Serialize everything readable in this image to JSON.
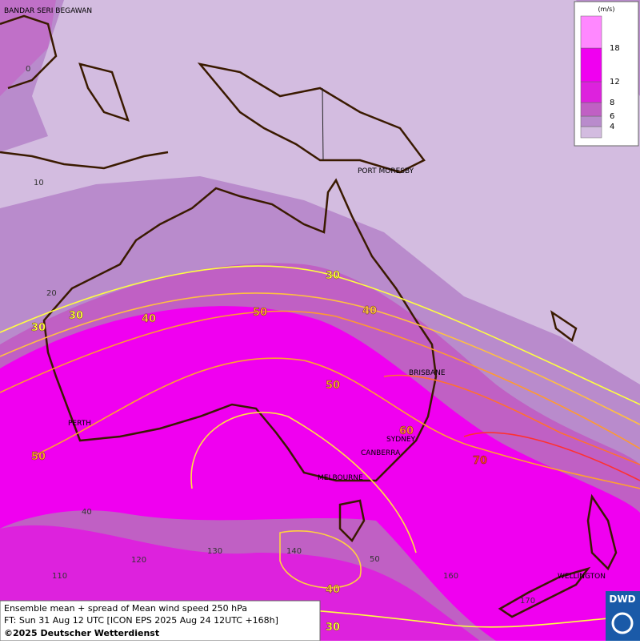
{
  "places": [
    "BANDAR SERI BEGAWAN",
    "PORT MORESBY",
    "BRISBANE",
    "PERTH",
    "SYDNEY",
    "CANBERRA",
    "MELBOURNE",
    "WELLINGTON"
  ],
  "grid_labels": [
    "0",
    "10",
    "20",
    "40",
    "110",
    "120",
    "130",
    "140",
    "50",
    "160",
    "170"
  ],
  "contour_labels": [
    {
      "value": 30,
      "color": "#ffff40"
    },
    {
      "value": 30,
      "color": "#ffff40"
    },
    {
      "value": 40,
      "color": "#ffc040"
    },
    {
      "value": 50,
      "color": "#ffa030"
    },
    {
      "value": 30,
      "color": "#ffff40"
    },
    {
      "value": 40,
      "color": "#ffc040"
    },
    {
      "value": 50,
      "color": "#ffa030"
    },
    {
      "value": 60,
      "color": "#ff8030"
    },
    {
      "value": 70,
      "color": "#ff3030"
    },
    {
      "value": 50,
      "color": "#ffa030"
    },
    {
      "value": 40,
      "color": "#ffc040"
    },
    {
      "value": 30,
      "color": "#ffff40"
    }
  ],
  "legend": {
    "unit": "(m/s)",
    "levels": [
      4,
      6,
      8,
      12,
      18
    ],
    "colors": [
      "#d3bce0",
      "#b98bcc",
      "#c060c4",
      "#dd22dd",
      "#f000f0",
      "#ff88ff"
    ]
  },
  "footer": {
    "lines": [
      "Ensemble mean + spread of Mean wind speed 250 hPa",
      "FT: Sun 31 Aug 12 UTC [ICON EPS 2025 Aug 24 12UTC +168h]"
    ],
    "copyright": "©2025 Deutscher Wetterdienst"
  },
  "logo": "DWD"
}
